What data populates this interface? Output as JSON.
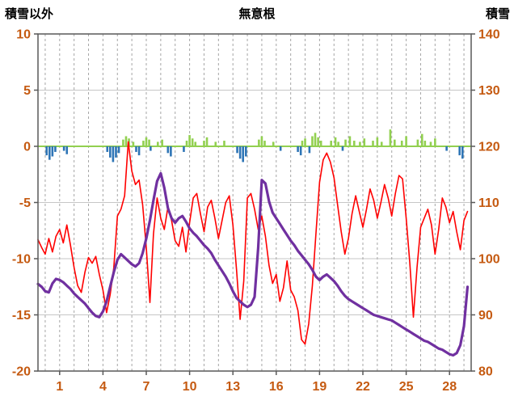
{
  "header": {
    "left_label": "積雪以外",
    "title": "無意根",
    "right_label": "積雪"
  },
  "chart_data": {
    "type": "line",
    "title": "無意根",
    "left_axis": {
      "label": "積雪以外",
      "min": -20,
      "max": 10,
      "ticks": [
        10,
        5,
        0,
        -5,
        -10,
        -15,
        -20
      ]
    },
    "right_axis": {
      "label": "積雪",
      "min": 80,
      "max": 140,
      "ticks": [
        140,
        130,
        120,
        110,
        100,
        90,
        80
      ]
    },
    "x_axis": {
      "min": 0,
      "max": 30,
      "tick_labels": [
        1,
        4,
        7,
        10,
        13,
        16,
        19,
        22,
        25,
        28
      ],
      "label_day_offset": 0.5,
      "grid_step": 1
    },
    "legend": "none",
    "colors": {
      "grid": "#c6c6c6",
      "grid_dash": "#a6a6a6",
      "frame": "#595959",
      "zero_line": "#92d050",
      "tick_text": "#c55a11",
      "red": "#ff0000",
      "purple": "#7030a0",
      "green": "#92d050",
      "blue": "#2e75b6"
    },
    "series": [
      {
        "name": "temperature-red",
        "type": "line",
        "axis": "left",
        "color": "#ff0000",
        "width": 1.6,
        "x_start": 0,
        "x_step": 0.25,
        "values": [
          -8.3,
          -9,
          -9.6,
          -8.2,
          -9.4,
          -8,
          -7.4,
          -8.6,
          -7,
          -8.8,
          -10.8,
          -12.4,
          -13,
          -11.2,
          -9.9,
          -10.4,
          -9.8,
          -11.4,
          -12.8,
          -14.8,
          -13.2,
          -10.8,
          -6.2,
          -5.6,
          -4.4,
          0.4,
          -2.2,
          -3.4,
          -3,
          -5.2,
          -9,
          -13.9,
          -7.8,
          -4.6,
          -6.4,
          -7.4,
          -5.4,
          -6.6,
          -8.4,
          -8.9,
          -7.2,
          -9.4,
          -6.8,
          -4.6,
          -4.2,
          -6,
          -7.6,
          -5.4,
          -4.8,
          -6.4,
          -8.2,
          -6.6,
          -5,
          -4.4,
          -7,
          -11,
          -15.4,
          -12,
          -4.6,
          -4.2,
          -5.6,
          -7.4,
          -6.2,
          -8,
          -10.6,
          -12.2,
          -11.4,
          -13.8,
          -12.6,
          -10.2,
          -12.8,
          -13.4,
          -14.6,
          -17.2,
          -17.6,
          -15.8,
          -12.4,
          -7.8,
          -3.2,
          -1.2,
          -0.6,
          -1.4,
          -2.8,
          -5.2,
          -7.6,
          -9.6,
          -8.2,
          -6,
          -4.4,
          -5.8,
          -7.2,
          -5.6,
          -3.8,
          -4.8,
          -6.4,
          -5,
          -3.4,
          -4.6,
          -6.2,
          -4.2,
          -2.6,
          -2.9,
          -6.4,
          -10.4,
          -15.2,
          -10.8,
          -7.2,
          -6.4,
          -5.6,
          -7,
          -9.6,
          -7.4,
          -4.6,
          -5.4,
          -6.8,
          -5.8,
          -7.6,
          -9.2,
          -6.6,
          -5.8
        ]
      },
      {
        "name": "snow-depth-purple",
        "type": "line",
        "axis": "right",
        "color": "#7030a0",
        "width": 3.2,
        "x_start": 0,
        "x_step": 0.25,
        "values": [
          95.5,
          95,
          94.2,
          94,
          95.6,
          96.4,
          96.2,
          95.8,
          95.2,
          94.6,
          93.8,
          93.2,
          92.6,
          92,
          91.2,
          90.4,
          89.8,
          89.6,
          90.6,
          92.4,
          95,
          97.6,
          99.8,
          100.8,
          100.2,
          99.6,
          99,
          98.6,
          99.2,
          101,
          103.6,
          106.8,
          110.4,
          113.8,
          115.2,
          112.6,
          109,
          107.2,
          106.4,
          107.2,
          107.6,
          106.6,
          105.4,
          104.6,
          104,
          103.2,
          102.4,
          101.8,
          101,
          99.8,
          98.8,
          97.8,
          96.8,
          95.6,
          94.2,
          93,
          92.4,
          91.8,
          91.4,
          91.8,
          93.2,
          102,
          114,
          113.4,
          110.2,
          108.2,
          107.2,
          106.2,
          105.2,
          104.2,
          103.2,
          102.4,
          101.4,
          100.6,
          99.8,
          99,
          98,
          96.8,
          96.2,
          96.8,
          97.2,
          96.6,
          96,
          95.2,
          94.2,
          93.4,
          92.8,
          92.4,
          92,
          91.6,
          91.2,
          90.8,
          90.4,
          90,
          89.8,
          89.6,
          89.4,
          89.2,
          89,
          88.6,
          88.2,
          87.8,
          87.4,
          87,
          86.6,
          86.2,
          85.8,
          85.4,
          85.2,
          84.8,
          84.4,
          84,
          83.8,
          83.4,
          83,
          82.8,
          83.2,
          84.6,
          88,
          95
        ]
      },
      {
        "name": "snowfall-green-bars",
        "type": "bar",
        "axis": "left",
        "color": "#92d050",
        "bar_width": 2.6,
        "points": [
          [
            5.9,
            0.6
          ],
          [
            6.1,
            0.9
          ],
          [
            6.3,
            0.7
          ],
          [
            6.6,
            0.4
          ],
          [
            7.3,
            0.5
          ],
          [
            7.5,
            0.8
          ],
          [
            7.7,
            0.6
          ],
          [
            8.3,
            0.4
          ],
          [
            8.6,
            0.6
          ],
          [
            10.3,
            0.5
          ],
          [
            10.5,
            1.0
          ],
          [
            10.7,
            0.7
          ],
          [
            10.9,
            0.4
          ],
          [
            11.5,
            0.5
          ],
          [
            11.7,
            0.8
          ],
          [
            12.3,
            0.4
          ],
          [
            12.9,
            0.5
          ],
          [
            15.3,
            0.6
          ],
          [
            15.5,
            0.9
          ],
          [
            15.7,
            0.5
          ],
          [
            16.3,
            0.4
          ],
          [
            18.3,
            0.5
          ],
          [
            18.5,
            0.7
          ],
          [
            19.0,
            0.9
          ],
          [
            19.2,
            1.2
          ],
          [
            19.4,
            0.8
          ],
          [
            19.6,
            0.5
          ],
          [
            20.3,
            0.5
          ],
          [
            20.6,
            0.8
          ],
          [
            20.8,
            0.4
          ],
          [
            21.3,
            0.6
          ],
          [
            21.6,
            0.9
          ],
          [
            21.9,
            0.5
          ],
          [
            22.3,
            0.4
          ],
          [
            22.6,
            0.7
          ],
          [
            23.2,
            0.5
          ],
          [
            23.5,
            0.8
          ],
          [
            23.8,
            0.4
          ],
          [
            24.4,
            1.5
          ],
          [
            24.7,
            0.6
          ],
          [
            25.2,
            0.5
          ],
          [
            25.5,
            0.9
          ],
          [
            26.3,
            0.6
          ],
          [
            26.6,
            1.1
          ],
          [
            26.8,
            0.5
          ],
          [
            27.2,
            0.4
          ],
          [
            27.5,
            0.7
          ]
        ]
      },
      {
        "name": "melt-blue-bars",
        "type": "bar",
        "axis": "left",
        "color": "#2e75b6",
        "bar_width": 2.6,
        "points": [
          [
            0.6,
            -0.8
          ],
          [
            0.8,
            -1.2
          ],
          [
            1.0,
            -0.9
          ],
          [
            1.2,
            -0.5
          ],
          [
            1.8,
            -0.4
          ],
          [
            2.0,
            -0.7
          ],
          [
            4.8,
            -0.5
          ],
          [
            5.0,
            -1.0
          ],
          [
            5.2,
            -1.4
          ],
          [
            5.4,
            -1.0
          ],
          [
            5.6,
            -0.6
          ],
          [
            6.8,
            -0.5
          ],
          [
            7.0,
            -0.8
          ],
          [
            7.8,
            -0.4
          ],
          [
            9.0,
            -0.6
          ],
          [
            9.2,
            -0.9
          ],
          [
            10.1,
            -0.5
          ],
          [
            13.8,
            -0.6
          ],
          [
            14.0,
            -1.1
          ],
          [
            14.2,
            -1.4
          ],
          [
            14.4,
            -0.9
          ],
          [
            16.8,
            -0.4
          ],
          [
            18.0,
            -0.5
          ],
          [
            18.2,
            -0.8
          ],
          [
            18.8,
            -0.6
          ],
          [
            21.1,
            -0.4
          ],
          [
            28.3,
            -0.4
          ],
          [
            29.2,
            -0.8
          ],
          [
            29.4,
            -1.1
          ]
        ]
      }
    ]
  }
}
